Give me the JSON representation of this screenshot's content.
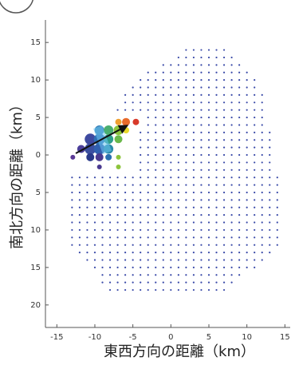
{
  "chart_data": {
    "type": "scatter",
    "x_label": "東西方向の距離（km）",
    "y_label": "南北方向の距離（km）",
    "xlim": [
      -16.5,
      15.7
    ],
    "ylim": [
      -23,
      18
    ],
    "xticks": [
      -15,
      -10,
      -5,
      0,
      5,
      10,
      15
    ],
    "yticks": [
      15,
      10,
      5,
      0,
      {
        "value": -5,
        "label": "5"
      },
      {
        "value": -10,
        "label": "10"
      },
      {
        "value": -15,
        "label": "15"
      },
      {
        "value": -20,
        "label": "20"
      }
    ],
    "grid_points": {
      "color": "#3a4aa8",
      "rows": [
        {
          "y": 14,
          "x": [
            2,
            3,
            4,
            5,
            6,
            7
          ]
        },
        {
          "y": 13,
          "x": [
            1,
            2,
            3,
            4,
            5,
            6,
            7,
            8
          ]
        },
        {
          "y": 12,
          "x": [
            -1,
            0,
            1,
            2,
            3,
            4,
            5,
            6,
            7,
            8,
            9
          ]
        },
        {
          "y": 11,
          "x": [
            -3,
            -2,
            -1,
            0,
            1,
            2,
            3,
            4,
            5,
            6,
            7,
            8,
            9,
            10
          ]
        },
        {
          "y": 10,
          "x": [
            -4,
            -3,
            -2,
            -1,
            0,
            1,
            2,
            3,
            4,
            5,
            6,
            7,
            8,
            9,
            10,
            11
          ]
        },
        {
          "y": 9,
          "x": [
            -5,
            -4,
            -3,
            -2,
            -1,
            0,
            1,
            2,
            3,
            4,
            5,
            6,
            7,
            8,
            9,
            10,
            11
          ]
        },
        {
          "y": 8,
          "x": [
            -6,
            -5,
            -4,
            -3,
            -2,
            -1,
            0,
            1,
            2,
            3,
            4,
            5,
            6,
            7,
            8,
            9,
            10,
            11,
            12
          ]
        },
        {
          "y": 7,
          "x": [
            -6,
            -5,
            -4,
            -3,
            -2,
            -1,
            0,
            1,
            2,
            3,
            4,
            5,
            6,
            7,
            8,
            9,
            10,
            11,
            12
          ]
        },
        {
          "y": 6,
          "x": [
            -7,
            -6,
            -5,
            -4,
            -3,
            -2,
            -1,
            0,
            1,
            2,
            3,
            4,
            5,
            6,
            7,
            8,
            9,
            10,
            11,
            12
          ]
        },
        {
          "y": 5,
          "x": [
            -3,
            -2,
            -1,
            0,
            1,
            2,
            3,
            4,
            5,
            6,
            7,
            8,
            9,
            10,
            11,
            12
          ]
        },
        {
          "y": 4,
          "x": [
            -3,
            -2,
            -1,
            0,
            1,
            2,
            3,
            4,
            5,
            6,
            7,
            8,
            9,
            10,
            11,
            12
          ]
        },
        {
          "y": 3,
          "x": [
            -4,
            -3,
            -2,
            -1,
            0,
            1,
            2,
            3,
            4,
            5,
            6,
            7,
            8,
            9,
            10,
            11,
            12,
            13
          ]
        },
        {
          "y": 2,
          "x": [
            -4,
            -3,
            -2,
            -1,
            0,
            1,
            2,
            3,
            4,
            5,
            6,
            7,
            8,
            9,
            10,
            11,
            12,
            13
          ]
        },
        {
          "y": 1,
          "x": [
            -4,
            -3,
            -2,
            -1,
            0,
            1,
            2,
            3,
            4,
            5,
            6,
            7,
            8,
            9,
            10,
            11,
            12,
            13
          ]
        },
        {
          "y": 0,
          "x": [
            -4,
            -3,
            -2,
            -1,
            0,
            1,
            2,
            3,
            4,
            5,
            6,
            7,
            8,
            9,
            10,
            11,
            12,
            13
          ]
        },
        {
          "y": -1,
          "x": [
            -4,
            -3,
            -2,
            -1,
            0,
            1,
            2,
            3,
            4,
            5,
            6,
            7,
            8,
            9,
            10,
            11,
            12,
            13
          ]
        },
        {
          "y": -2,
          "x": [
            -4,
            -3,
            -2,
            -1,
            0,
            1,
            2,
            3,
            4,
            5,
            6,
            7,
            8,
            9,
            10,
            11,
            12,
            13
          ]
        },
        {
          "y": -3,
          "x": [
            -13,
            -12,
            -11,
            -10,
            -9,
            -8,
            -7,
            -6,
            -5,
            -4,
            -3,
            -2,
            -1,
            0,
            1,
            2,
            3,
            4,
            5,
            6,
            7,
            8,
            9,
            10,
            11,
            12,
            13,
            14
          ]
        },
        {
          "y": -4,
          "x": [
            -13,
            -12,
            -11,
            -10,
            -9,
            -8,
            -7,
            -6,
            -5,
            -4,
            -3,
            -2,
            -1,
            0,
            1,
            2,
            3,
            4,
            5,
            6,
            7,
            8,
            9,
            10,
            11,
            12,
            13,
            14
          ]
        },
        {
          "y": -5,
          "x": [
            -13,
            -12,
            -11,
            -10,
            -9,
            -8,
            -7,
            -6,
            -5,
            -4,
            -3,
            -2,
            -1,
            0,
            1,
            2,
            3,
            4,
            5,
            6,
            7,
            8,
            9,
            10,
            11,
            12,
            13,
            14
          ]
        },
        {
          "y": -6,
          "x": [
            -13,
            -12,
            -11,
            -10,
            -9,
            -8,
            -7,
            -6,
            -5,
            -4,
            -3,
            -2,
            -1,
            0,
            1,
            2,
            3,
            4,
            5,
            6,
            7,
            8,
            9,
            10,
            11,
            12,
            13,
            14
          ]
        },
        {
          "y": -7,
          "x": [
            -13,
            -12,
            -11,
            -10,
            -9,
            -8,
            -7,
            -6,
            -5,
            -4,
            -3,
            -2,
            -1,
            0,
            1,
            2,
            3,
            4,
            5,
            6,
            7,
            8,
            9,
            10,
            11,
            12,
            13,
            14
          ]
        },
        {
          "y": -8,
          "x": [
            -13,
            -12,
            -11,
            -10,
            -9,
            -8,
            -7,
            -6,
            -5,
            -4,
            -3,
            -2,
            -1,
            0,
            1,
            2,
            3,
            4,
            5,
            6,
            7,
            8,
            9,
            10,
            11,
            12,
            13,
            14
          ]
        },
        {
          "y": -9,
          "x": [
            -13,
            -12,
            -11,
            -10,
            -9,
            -8,
            -7,
            -6,
            -5,
            -4,
            -3,
            -2,
            -1,
            0,
            1,
            2,
            3,
            4,
            5,
            6,
            7,
            8,
            9,
            10,
            11,
            12,
            13,
            14
          ]
        },
        {
          "y": -10,
          "x": [
            -13,
            -12,
            -11,
            -10,
            -9,
            -8,
            -7,
            -6,
            -5,
            -4,
            -3,
            -2,
            -1,
            0,
            1,
            2,
            3,
            4,
            5,
            6,
            7,
            8,
            9,
            10,
            11,
            12,
            13,
            14
          ]
        },
        {
          "y": -11,
          "x": [
            -13,
            -12,
            -11,
            -10,
            -9,
            -8,
            -7,
            -6,
            -5,
            -4,
            -3,
            -2,
            -1,
            0,
            1,
            2,
            3,
            4,
            5,
            6,
            7,
            8,
            9,
            10,
            11,
            12,
            13,
            14
          ]
        },
        {
          "y": -12,
          "x": [
            -13,
            -12,
            -11,
            -10,
            -9,
            -8,
            -7,
            -6,
            -5,
            -4,
            -3,
            -2,
            -1,
            0,
            1,
            2,
            3,
            4,
            5,
            6,
            7,
            8,
            9,
            10,
            11,
            12,
            13,
            14
          ]
        },
        {
          "y": -13,
          "x": [
            -12,
            -11,
            -10,
            -9,
            -8,
            -7,
            -6,
            -5,
            -4,
            -3,
            -2,
            -1,
            0,
            1,
            2,
            3,
            4,
            5,
            6,
            7,
            8,
            9,
            10,
            11,
            12,
            13
          ]
        },
        {
          "y": -14,
          "x": [
            -11,
            -10,
            -9,
            -8,
            -7,
            -6,
            -5,
            -4,
            -3,
            -2,
            -1,
            0,
            1,
            2,
            3,
            4,
            5,
            6,
            7,
            8,
            9,
            10,
            11,
            12
          ]
        },
        {
          "y": -15,
          "x": [
            -10,
            -9,
            -8,
            -7,
            -6,
            -5,
            -4,
            -3,
            -2,
            -1,
            0,
            1,
            2,
            3,
            4,
            5,
            6,
            7,
            8,
            9,
            10,
            11
          ]
        },
        {
          "y": -16,
          "x": [
            -9,
            -8,
            -7,
            -6,
            -5,
            -4,
            -3,
            -2,
            -1,
            0,
            1,
            2,
            3,
            4,
            5,
            6,
            7,
            8,
            9
          ]
        },
        {
          "y": -17,
          "x": [
            -9,
            -8,
            -7,
            -6,
            -5,
            -4,
            -3,
            -2,
            -1,
            0,
            1,
            2,
            3,
            4,
            5,
            6,
            7,
            8
          ]
        },
        {
          "y": -18,
          "x": [
            -8,
            -7,
            -6,
            -5,
            -4,
            -3,
            -2,
            -1,
            0,
            1,
            2,
            3,
            4,
            5,
            6,
            7
          ]
        }
      ]
    },
    "bubbles": {
      "x": [
        -12.9,
        -11.8,
        -10.6,
        -9.4,
        -8.2,
        -10.6,
        -9.4,
        -8.2,
        -6.9,
        -9.4,
        -8.2,
        -6.9,
        -5.9,
        -6.9,
        -5.9,
        -4.6,
        -10.6,
        -9.4,
        -8.2,
        -6.9,
        -9.4,
        -6.9
      ],
      "y": [
        -0.3,
        0.8,
        0.8,
        0.8,
        0.8,
        2.1,
        2.1,
        2.1,
        2.1,
        3.3,
        3.3,
        3.3,
        3.3,
        4.4,
        4.4,
        4.4,
        -0.3,
        -0.3,
        -0.3,
        -0.3,
        -1.6,
        -1.6
      ],
      "sizes": [
        3,
        5,
        7,
        7,
        6,
        7,
        7,
        6,
        5,
        6,
        6,
        6,
        4,
        4,
        5,
        4,
        5,
        5,
        4,
        3,
        3,
        3
      ],
      "colors": [
        "#5b3a96",
        "#4b3f9a",
        "#3b4fa0",
        "#3060b0",
        "#2a8aa8",
        "#3e4aa0",
        "#2f6fb5",
        "#2e9e8a",
        "#6ab84a",
        "#3880b8",
        "#4aae70",
        "#8cc43c",
        "#e8d92a",
        "#f0a030",
        "#e86a2a",
        "#d83a2a",
        "#2a3a8a",
        "#4a3a90",
        "#2a6fb0",
        "#8cc43c",
        "#4a3a90",
        "#8cc43c"
      ]
    }
  }
}
